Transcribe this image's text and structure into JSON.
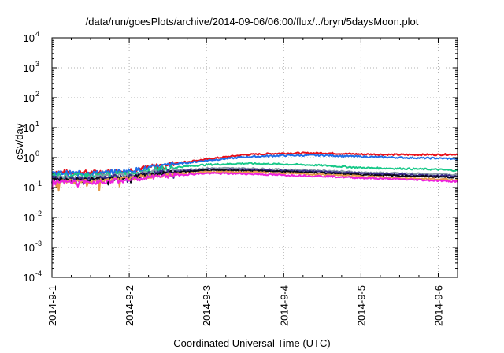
{
  "chart_data": {
    "type": "line",
    "title": "/data/run/goesPlots/archive/2014-09-06/06:00/flux/../bryn/5daysMoon.plot",
    "xlabel": "Coordinated Universal Time (UTC)",
    "ylabel": "cSv/day",
    "yscale": "log",
    "ylim": [
      0.0001,
      10000
    ],
    "xlim": [
      "2014-09-01",
      "2014-09-06 06:00"
    ],
    "xticks": [
      {
        "label": "2014-9-1",
        "day": 0
      },
      {
        "label": "2014-9-2",
        "day": 1
      },
      {
        "label": "2014-9-3",
        "day": 2
      },
      {
        "label": "2014-9-4",
        "day": 3
      },
      {
        "label": "2014-9-5",
        "day": 4
      },
      {
        "label": "2014-9-6",
        "day": 5
      }
    ],
    "yticks": [
      {
        "base": "10",
        "exp": "-4",
        "value": 0.0001
      },
      {
        "base": "10",
        "exp": "-3",
        "value": 0.001
      },
      {
        "base": "10",
        "exp": "-2",
        "value": 0.01
      },
      {
        "base": "10",
        "exp": "-1",
        "value": 0.1
      },
      {
        "base": "10",
        "exp": "0",
        "value": 1
      },
      {
        "base": "10",
        "exp": "1",
        "value": 10
      },
      {
        "base": "10",
        "exp": "2",
        "value": 100
      },
      {
        "base": "10",
        "exp": "3",
        "value": 1000
      },
      {
        "base": "10",
        "exp": "4",
        "value": 10000
      }
    ],
    "grid": true,
    "legend": false,
    "x": [
      "2014-09-01",
      "2014-09-01 12:00",
      "2014-09-02",
      "2014-09-02 12:00",
      "2014-09-03",
      "2014-09-03 12:00",
      "2014-09-04",
      "2014-09-04 12:00",
      "2014-09-05",
      "2014-09-05 12:00",
      "2014-09-06",
      "2014-09-06 06:00"
    ],
    "series": [
      {
        "color": "#e8101a",
        "values": [
          0.33,
          0.32,
          0.38,
          0.6,
          0.88,
          1.25,
          1.4,
          1.42,
          1.3,
          1.25,
          1.25,
          1.3
        ]
      },
      {
        "color": "#1f6fe8",
        "values": [
          0.31,
          0.3,
          0.36,
          0.56,
          0.8,
          1.05,
          1.18,
          1.2,
          1.08,
          1.0,
          0.95,
          0.9
        ]
      },
      {
        "color": "#18c888",
        "values": [
          0.26,
          0.25,
          0.3,
          0.45,
          0.58,
          0.64,
          0.6,
          0.55,
          0.46,
          0.43,
          0.4,
          0.37
        ]
      },
      {
        "color": "#8a9aa8",
        "values": [
          0.22,
          0.21,
          0.26,
          0.36,
          0.44,
          0.44,
          0.4,
          0.37,
          0.32,
          0.3,
          0.28,
          0.27
        ]
      },
      {
        "color": "#3a2a8a",
        "values": [
          0.2,
          0.2,
          0.24,
          0.33,
          0.4,
          0.4,
          0.36,
          0.34,
          0.3,
          0.27,
          0.25,
          0.24
        ]
      },
      {
        "color": "#0a0a18",
        "values": [
          0.18,
          0.18,
          0.22,
          0.31,
          0.37,
          0.37,
          0.34,
          0.31,
          0.27,
          0.25,
          0.23,
          0.22
        ]
      },
      {
        "color": "#e59a4a",
        "values": [
          0.16,
          0.16,
          0.2,
          0.28,
          0.33,
          0.33,
          0.3,
          0.27,
          0.24,
          0.21,
          0.19,
          0.18
        ]
      },
      {
        "color": "#ee22dd",
        "values": [
          0.15,
          0.15,
          0.18,
          0.25,
          0.3,
          0.29,
          0.26,
          0.24,
          0.21,
          0.19,
          0.17,
          0.16
        ]
      }
    ]
  }
}
